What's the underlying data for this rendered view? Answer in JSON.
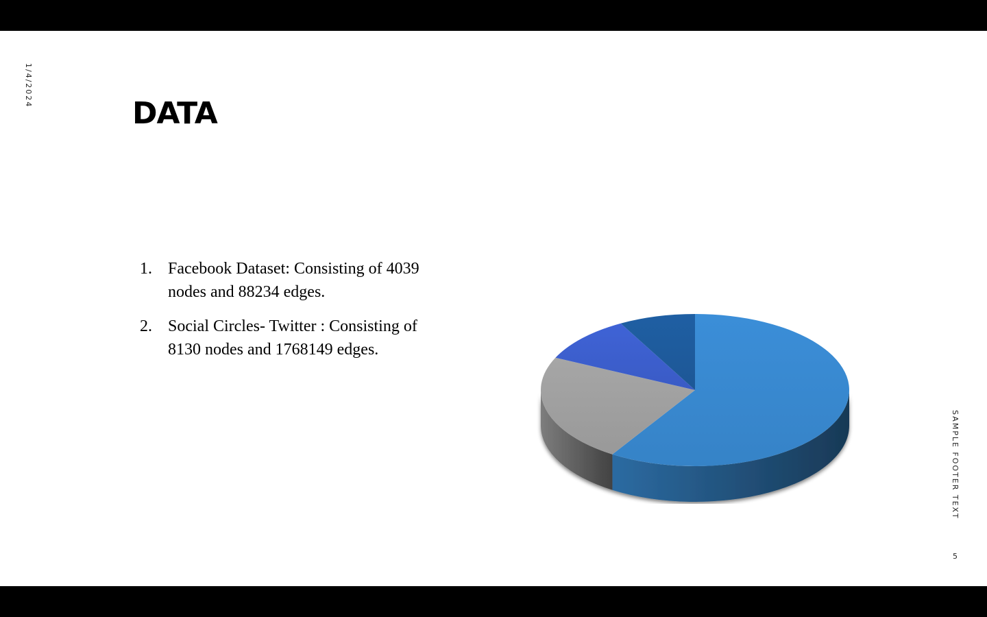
{
  "slide": {
    "date": "1/4/2024",
    "title": "DATA",
    "items": [
      {
        "number": "1.",
        "text": "Facebook Dataset: Consisting of 4039 nodes and 88234 edges."
      },
      {
        "number": "2.",
        "text": "Social Circles- Twitter : Consisting of 8130 nodes and 1768149 edges."
      }
    ],
    "footer_text": "SAMPLE FOOTER TEXT",
    "page_number": "5"
  },
  "chart_data": {
    "type": "pie",
    "style": "3d",
    "legend": "none",
    "slices": [
      {
        "value": 59,
        "color": "#3b8ed8"
      },
      {
        "value": 23,
        "color": "#a6a6a6"
      },
      {
        "value": 10,
        "color": "#3f63d6"
      },
      {
        "value": 8,
        "color": "#1f5fa3"
      }
    ]
  }
}
